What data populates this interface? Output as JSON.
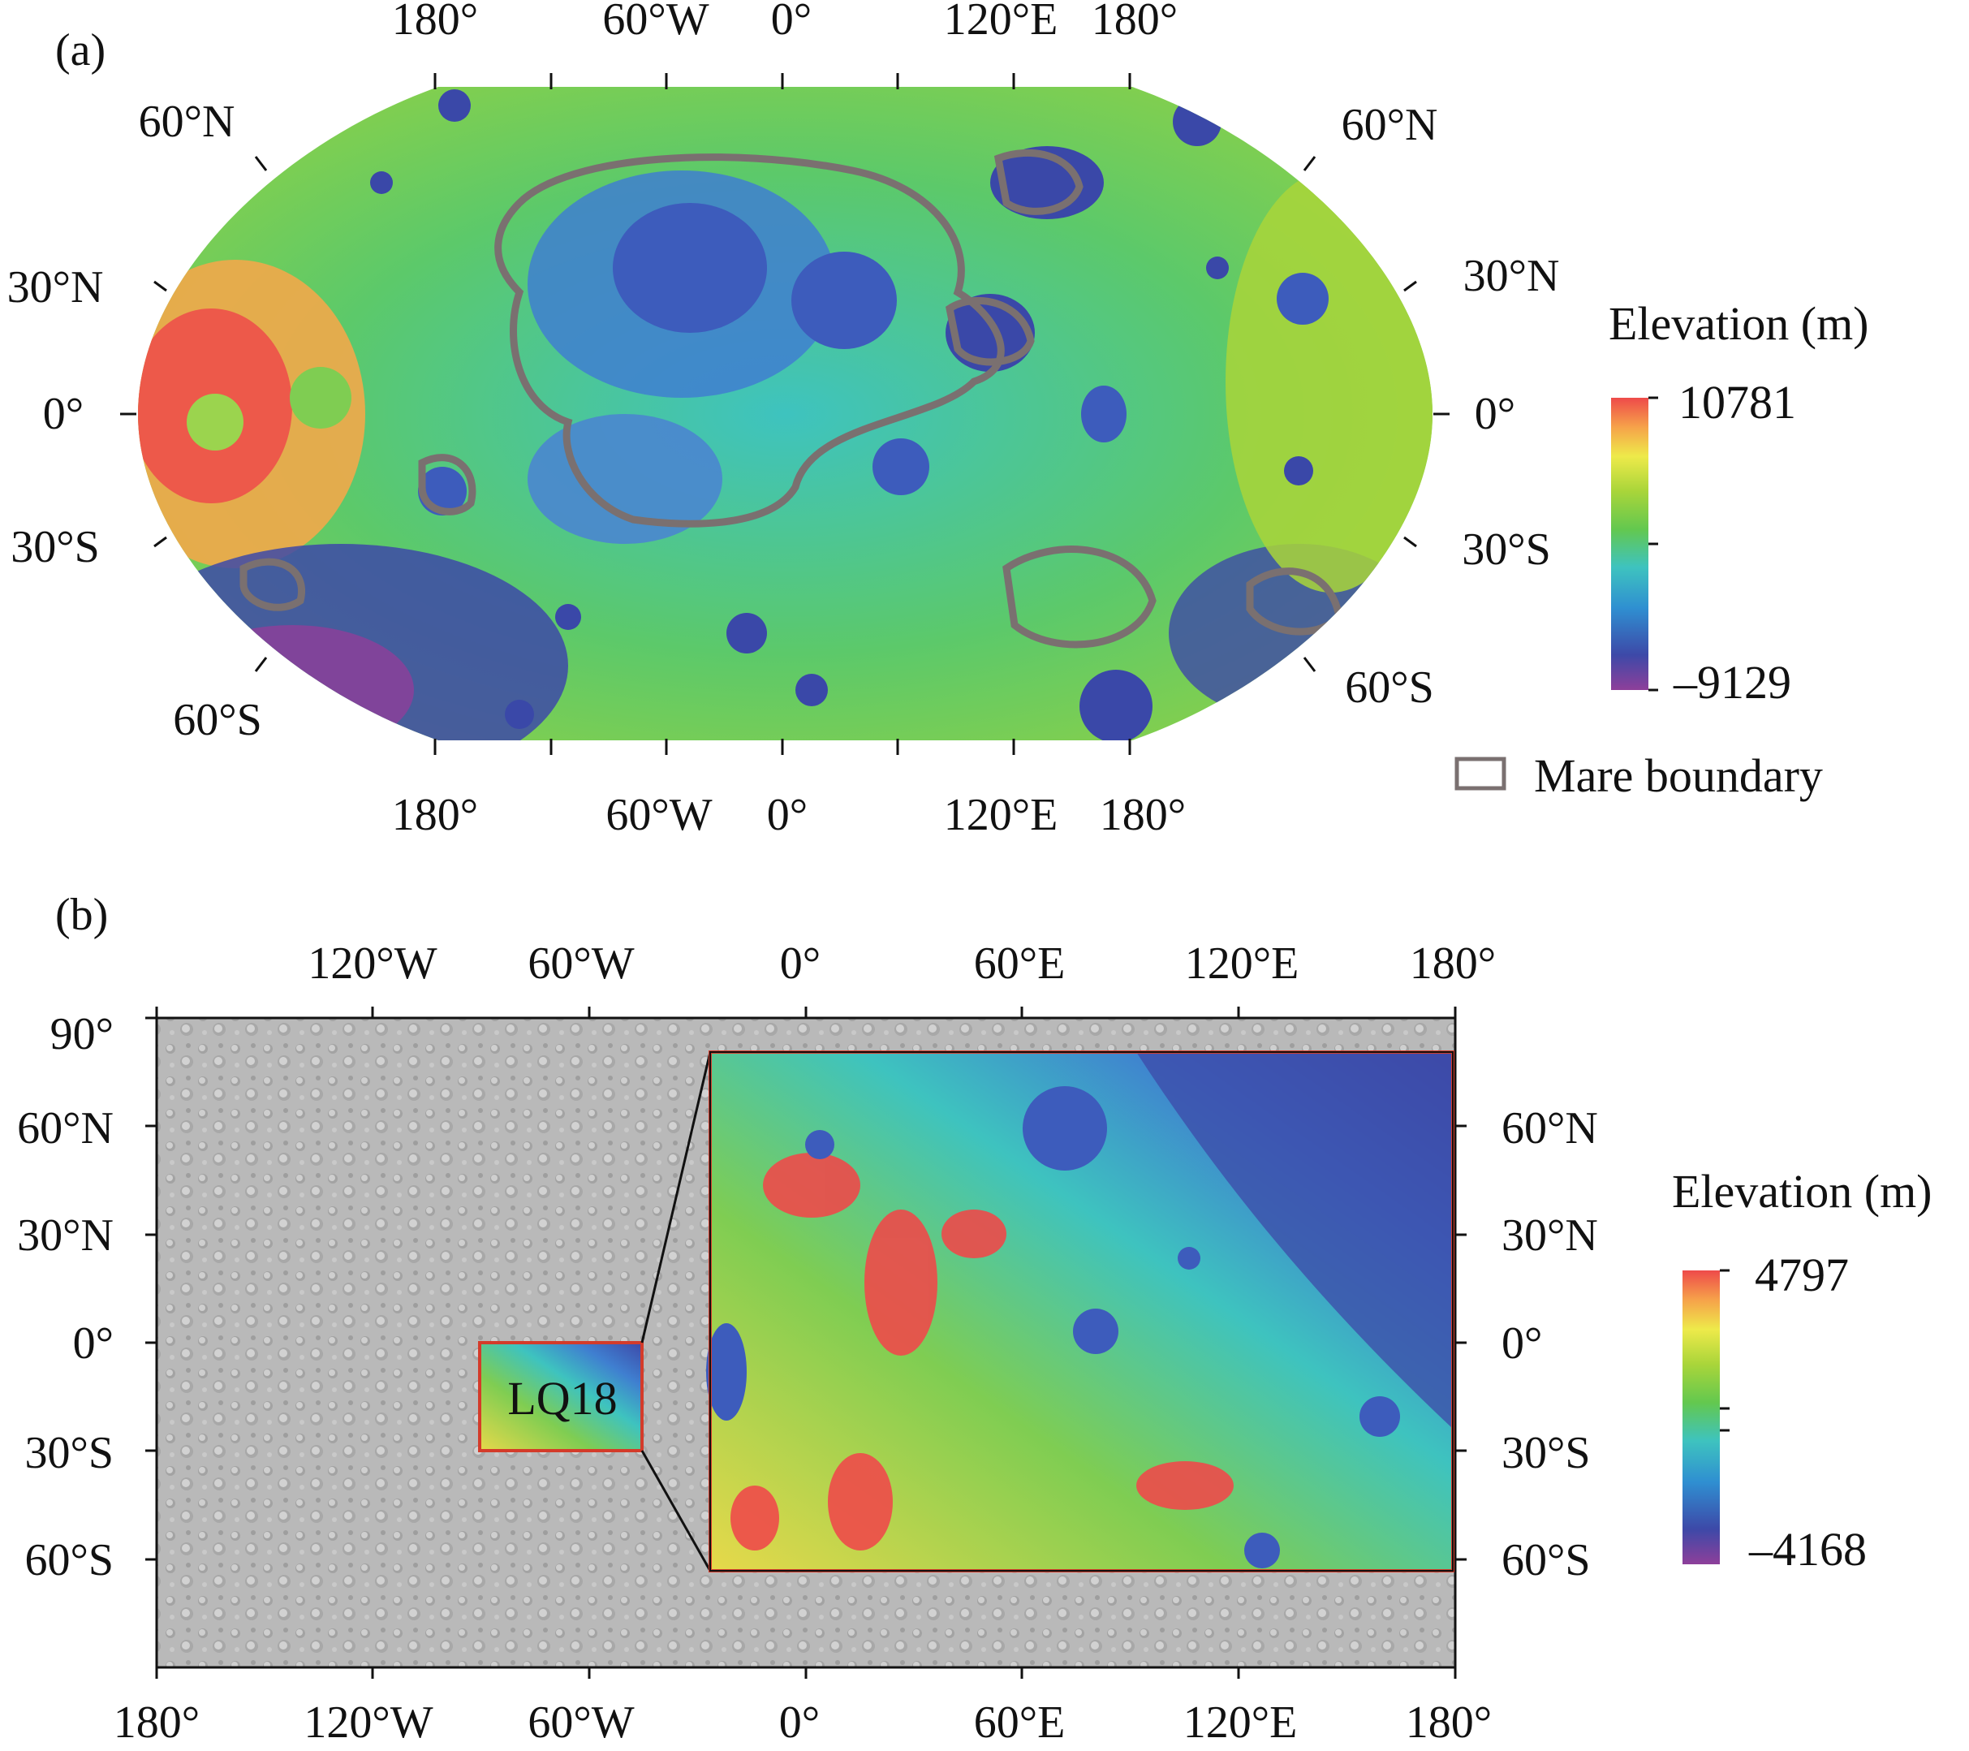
{
  "panel_a": {
    "label": "(a)",
    "top_lon_labels": [
      "180°",
      "60°W",
      "0°",
      "120°E",
      "180°"
    ],
    "bottom_lon_labels": [
      "180°",
      "60°W",
      "0°",
      "120°E",
      "180°"
    ],
    "left_lat_labels": [
      "60°N",
      "30°N",
      "0°",
      "30°S",
      "60°S"
    ],
    "right_lat_labels": [
      "60°N",
      "30°N",
      "0°",
      "30°S",
      "60°S"
    ],
    "legend": {
      "title": "Elevation (m)",
      "max": "10781",
      "min": "–9129",
      "colormap": [
        "#8e3f9a",
        "#3d49a8",
        "#2f8fd1",
        "#3ec3bf",
        "#63c84f",
        "#a9d53a",
        "#eeea4a",
        "#f6a24a",
        "#ee4a4a"
      ]
    },
    "mare_legend_label": "Mare boundary",
    "mare_boundary_color": "#7a7070"
  },
  "panel_b": {
    "label": "(b)",
    "top_lon_labels": [
      "120°W",
      "60°W",
      "0°",
      "60°E",
      "120°E",
      "180°"
    ],
    "bottom_lon_labels": [
      "180°",
      "120°W",
      "60°W",
      "0°",
      "60°E",
      "120°E",
      "180°"
    ],
    "left_lat_labels": [
      "90°",
      "60°N",
      "30°N",
      "0°",
      "30°S",
      "60°S"
    ],
    "right_lat_labels": [
      "60°N",
      "30°N",
      "0°",
      "30°S",
      "60°S"
    ],
    "region_label": "LQ18",
    "region_color": "#d43b2a",
    "legend": {
      "title": "Elevation (m)",
      "max": "4797",
      "min": "–4168",
      "colormap": [
        "#8e3f9a",
        "#3d49a8",
        "#2f8fd1",
        "#3ec3bf",
        "#63c84f",
        "#a9d53a",
        "#eeea4a",
        "#f6a24a",
        "#ee4a4a"
      ]
    }
  }
}
